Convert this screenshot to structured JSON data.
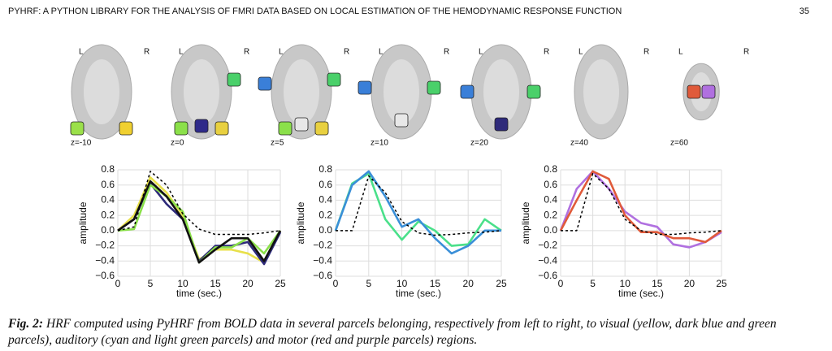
{
  "header": {
    "title": "PYHRF: A PYTHON LIBRARY FOR THE ANALYSIS OF FMRI DATA BASED ON LOCAL ESTIMATION OF THE HEMODYNAMIC RESPONSE FUNCTION",
    "page": "35"
  },
  "brains": [
    {
      "left": "L",
      "right": "R",
      "z": "z=-10"
    },
    {
      "left": "L",
      "right": "R",
      "z": "z=0"
    },
    {
      "left": "L",
      "right": "R",
      "z": "z=5"
    },
    {
      "left": "L",
      "right": "R",
      "z": "z=10"
    },
    {
      "left": "L",
      "right": "R",
      "z": "z=20"
    },
    {
      "left": "L",
      "right": "R",
      "z": "z=40"
    },
    {
      "left": "L",
      "right": "R",
      "z": "z=60"
    }
  ],
  "chart_data": [
    {
      "type": "line",
      "xlabel": "time (sec.)",
      "ylabel": "amplitude",
      "grid": true,
      "x": [
        0,
        2.5,
        5,
        7.5,
        10,
        12.5,
        15,
        17.5,
        20,
        22.5,
        25
      ],
      "xlim": [
        0,
        25
      ],
      "xticks": [
        0,
        5,
        10,
        15,
        20,
        25
      ],
      "ylim": [
        -0.6,
        0.8
      ],
      "yticks": [
        {
          "value": -0.6,
          "label": "−0.6"
        },
        {
          "value": -0.4,
          "label": "−0.4"
        },
        {
          "value": -0.2,
          "label": "−0.2"
        },
        {
          "value": 0,
          "label": "0.0"
        },
        0.2,
        0.4,
        0.6,
        0.8
      ],
      "series": [
        {
          "color": "#e8e04a",
          "values": [
            0,
            0.2,
            0.7,
            0.5,
            0.2,
            -0.38,
            -0.25,
            -0.25,
            -0.3,
            -0.42,
            0
          ]
        },
        {
          "color": "#2e2a7a",
          "values": [
            0,
            0.15,
            0.62,
            0.35,
            0.15,
            -0.4,
            -0.2,
            -0.2,
            -0.15,
            -0.44,
            -0.02
          ]
        },
        {
          "color": "#8be04a",
          "values": [
            0,
            0.02,
            0.6,
            0.45,
            0.25,
            -0.42,
            -0.22,
            -0.22,
            -0.1,
            -0.3,
            0
          ]
        },
        {
          "color": "#111111",
          "values": [
            0,
            0.15,
            0.65,
            0.45,
            0.15,
            -0.42,
            -0.25,
            -0.1,
            -0.1,
            -0.4,
            0
          ]
        },
        {
          "color": "#000000",
          "dash": true,
          "values": [
            0,
            0.05,
            0.78,
            0.6,
            0.22,
            0.02,
            -0.05,
            -0.05,
            -0.05,
            -0.03,
            0
          ]
        }
      ]
    },
    {
      "type": "line",
      "xlabel": "time (sec.)",
      "ylabel": "amplitude",
      "grid": true,
      "x": [
        0,
        2.5,
        5,
        7.5,
        10,
        12.5,
        15,
        17.5,
        20,
        22.5,
        25
      ],
      "xlim": [
        0,
        25
      ],
      "xticks": [
        0,
        5,
        10,
        15,
        20,
        25
      ],
      "ylim": [
        -0.6,
        0.8
      ],
      "yticks": [
        {
          "value": -0.6,
          "label": "−0.6"
        },
        {
          "value": -0.4,
          "label": "−0.4"
        },
        {
          "value": -0.2,
          "label": "−0.2"
        },
        {
          "value": 0,
          "label": "0.0"
        },
        0.2,
        0.4,
        0.6,
        0.8
      ],
      "series": [
        {
          "color": "#4ae08a",
          "values": [
            0,
            0.62,
            0.75,
            0.15,
            -0.12,
            0.12,
            0,
            -0.2,
            -0.18,
            0.15,
            0
          ]
        },
        {
          "color": "#3a8fd8",
          "values": [
            0,
            0.6,
            0.78,
            0.45,
            0.05,
            0.15,
            -0.1,
            -0.3,
            -0.2,
            0,
            0
          ]
        },
        {
          "color": "#000000",
          "dash": true,
          "values": [
            0,
            0,
            0.72,
            0.5,
            0.12,
            -0.03,
            -0.06,
            -0.05,
            -0.03,
            -0.02,
            0
          ]
        }
      ]
    },
    {
      "type": "line",
      "xlabel": "time (sec.)",
      "ylabel": "amplitude",
      "grid": true,
      "x": [
        0,
        2.5,
        5,
        7.5,
        10,
        12.5,
        15,
        17.5,
        20,
        22.5,
        25
      ],
      "xlim": [
        0,
        25
      ],
      "xticks": [
        0,
        5,
        10,
        15,
        20,
        25
      ],
      "ylim": [
        -0.6,
        0.8
      ],
      "yticks": [
        {
          "value": -0.6,
          "label": "−0.6"
        },
        {
          "value": -0.4,
          "label": "−0.4"
        },
        {
          "value": -0.2,
          "label": "−0.2"
        },
        {
          "value": 0,
          "label": "0.0"
        },
        0.2,
        0.4,
        0.6,
        0.8
      ],
      "series": [
        {
          "color": "#b070e0",
          "values": [
            0,
            0.55,
            0.78,
            0.55,
            0.25,
            0.1,
            0.05,
            -0.18,
            -0.22,
            -0.15,
            -0.02
          ]
        },
        {
          "color": "#e05a3a",
          "values": [
            0,
            0.4,
            0.78,
            0.68,
            0.2,
            -0.02,
            -0.02,
            -0.1,
            -0.1,
            -0.15,
            0
          ]
        },
        {
          "color": "#000000",
          "dash": true,
          "values": [
            0,
            0,
            0.75,
            0.55,
            0.15,
            0,
            -0.05,
            -0.05,
            -0.03,
            -0.02,
            0
          ]
        }
      ]
    }
  ],
  "caption": {
    "label": "Fig. 2:",
    "text": "HRF computed using PyHRF from BOLD data in several parcels belonging, respectively from left to right, to visual (yellow, dark blue and green parcels), auditory (cyan and light green parcels) and motor (red and purple parcels) regions."
  }
}
